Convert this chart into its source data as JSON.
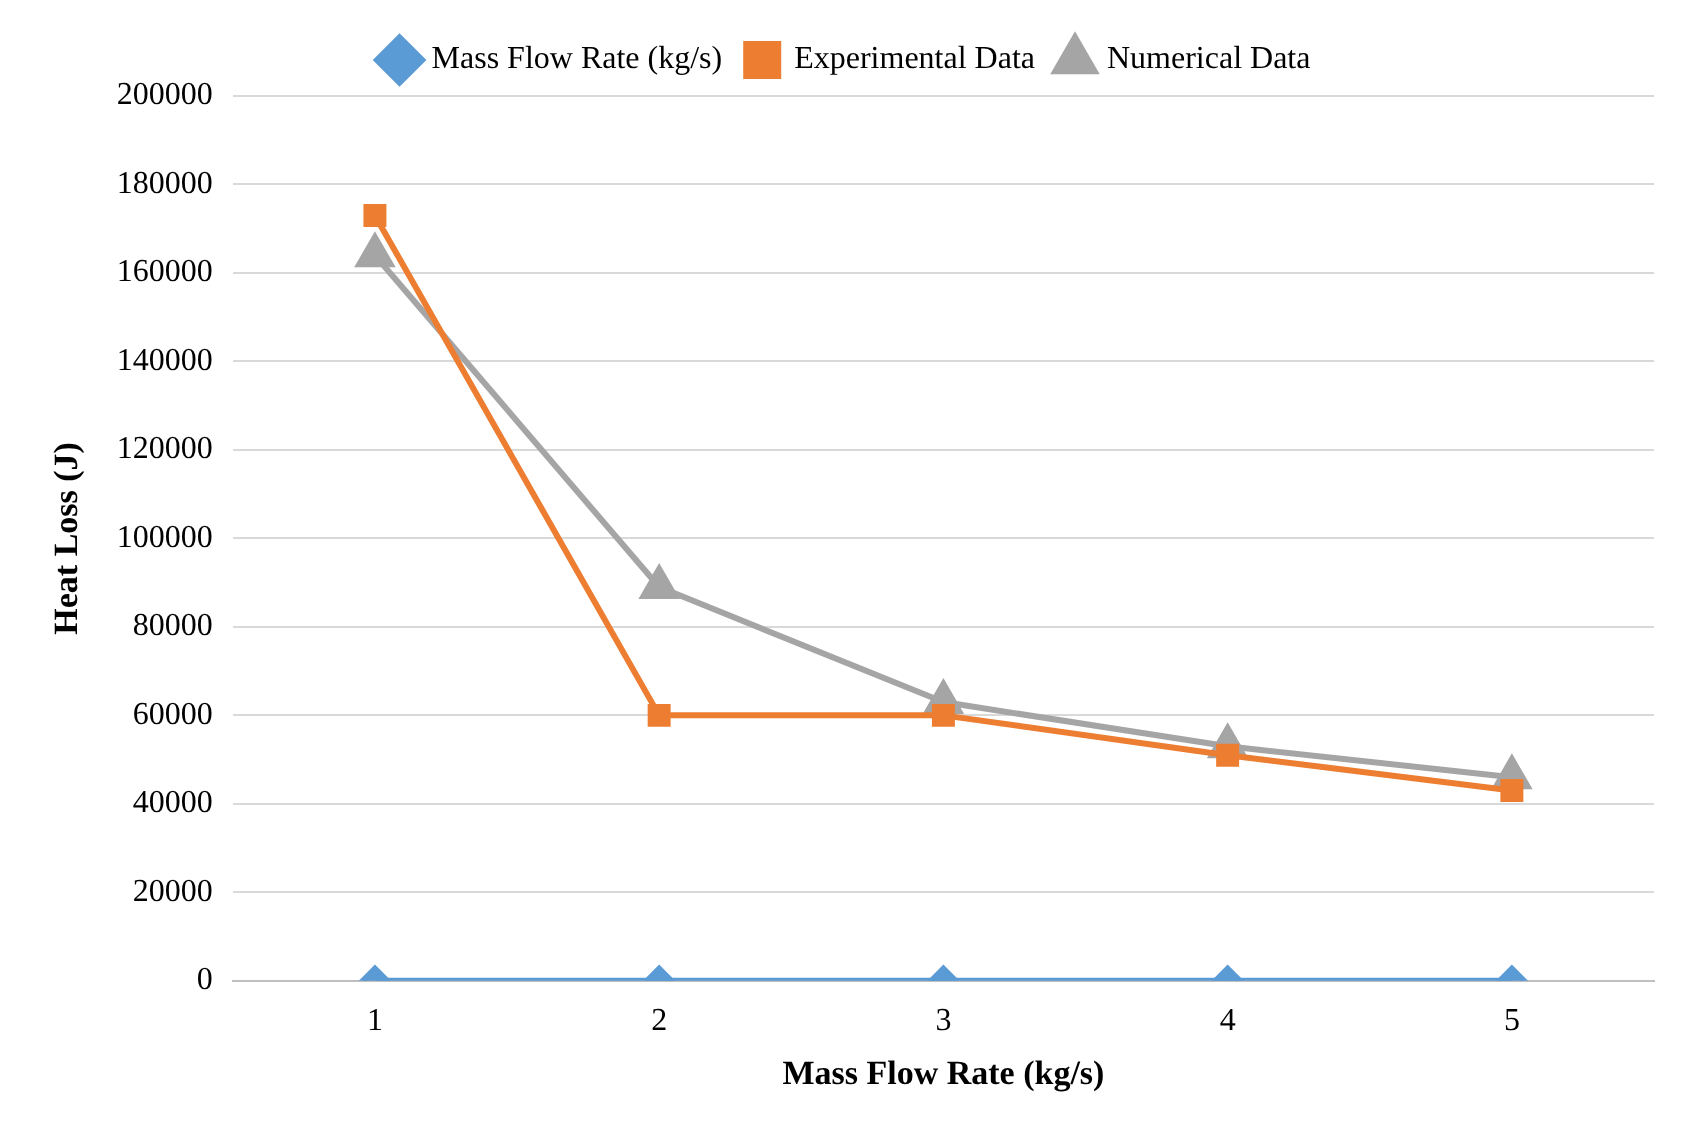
{
  "chart_data": {
    "type": "line",
    "xlabel": "Mass Flow Rate (kg/s)",
    "ylabel": "Heat Loss (J)",
    "categories": [
      "1",
      "2",
      "3",
      "4",
      "5"
    ],
    "series": [
      {
        "name": "Mass Flow Rate (kg/s)",
        "color": "#5b9bd5",
        "marker": "diamond",
        "values": [
          0,
          0,
          0,
          0,
          0
        ]
      },
      {
        "name": "Experimental Data",
        "color": "#ed7d31",
        "marker": "square",
        "values": [
          173000,
          60000,
          60000,
          51000,
          43000
        ]
      },
      {
        "name": "Numerical Data",
        "color": "#a5a5a5",
        "marker": "triangle",
        "values": [
          164000,
          89000,
          63000,
          53000,
          46000
        ]
      }
    ],
    "ylim": [
      0,
      200000
    ],
    "yticks": [
      0,
      20000,
      40000,
      60000,
      80000,
      100000,
      120000,
      140000,
      160000,
      180000,
      200000
    ],
    "grid": "y",
    "legend": "top",
    "line_style": "solid"
  }
}
